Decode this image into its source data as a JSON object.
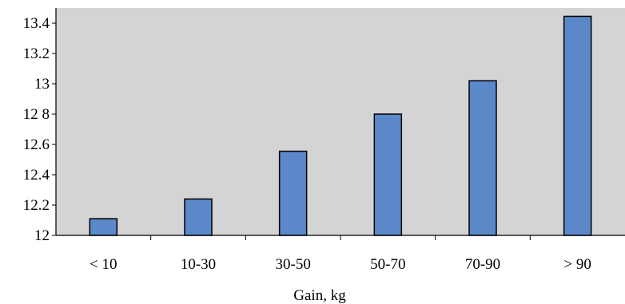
{
  "chart_data": {
    "type": "bar",
    "title": "",
    "xlabel": "Gain, kg",
    "ylabel": "",
    "categories": [
      "< 10",
      "10-30",
      "30-50",
      "50-70",
      "70-90",
      "> 90"
    ],
    "values": [
      12.11,
      12.24,
      12.555,
      12.8,
      13.02,
      13.445
    ],
    "ylim": [
      12,
      13.5
    ],
    "yticks": [
      12,
      12.2,
      12.4,
      12.6,
      12.8,
      13,
      13.2,
      13.4
    ],
    "ytick_labels": [
      "12",
      "12.2",
      "12.4",
      "12.6",
      "12 8",
      "13",
      "13.2",
      "13.4"
    ],
    "grid": false,
    "legend": "none",
    "colors": {
      "bar_fill": "#5b88c8",
      "bar_stroke": "#000000",
      "plot_background": "#d4d4d4",
      "axis": "#000000"
    }
  }
}
